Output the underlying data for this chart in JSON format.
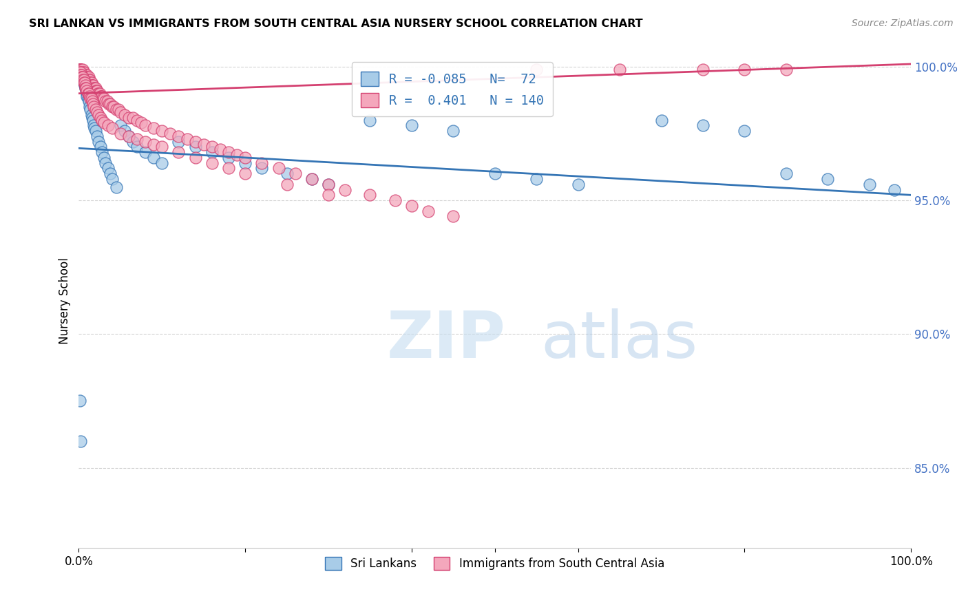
{
  "title": "SRI LANKAN VS IMMIGRANTS FROM SOUTH CENTRAL ASIA NURSERY SCHOOL CORRELATION CHART",
  "source": "Source: ZipAtlas.com",
  "ylabel": "Nursery School",
  "legend_label1": "Sri Lankans",
  "legend_label2": "Immigrants from South Central Asia",
  "R1": -0.085,
  "N1": 72,
  "R2": 0.401,
  "N2": 140,
  "color1": "#a8cce8",
  "color2": "#f4a7bc",
  "line_color1": "#3575b5",
  "line_color2": "#d44070",
  "watermark_zip": "ZIP",
  "watermark_atlas": "atlas",
  "xlim": [
    0.0,
    1.0
  ],
  "ylim": [
    0.82,
    1.005
  ],
  "yticks": [
    0.85,
    0.9,
    0.95,
    1.0
  ],
  "ytick_labels": [
    "85.0%",
    "90.0%",
    "95.0%",
    "100.0%"
  ],
  "sri_lankan_x": [
    0.001,
    0.001,
    0.002,
    0.002,
    0.003,
    0.003,
    0.003,
    0.004,
    0.004,
    0.005,
    0.005,
    0.006,
    0.006,
    0.007,
    0.007,
    0.008,
    0.008,
    0.009,
    0.01,
    0.01,
    0.011,
    0.012,
    0.013,
    0.014,
    0.015,
    0.016,
    0.017,
    0.018,
    0.019,
    0.02,
    0.022,
    0.024,
    0.026,
    0.028,
    0.03,
    0.032,
    0.035,
    0.038,
    0.04,
    0.045,
    0.05,
    0.055,
    0.06,
    0.065,
    0.07,
    0.08,
    0.09,
    0.1,
    0.12,
    0.14,
    0.16,
    0.18,
    0.2,
    0.22,
    0.25,
    0.28,
    0.3,
    0.35,
    0.4,
    0.45,
    0.5,
    0.55,
    0.6,
    0.7,
    0.75,
    0.8,
    0.85,
    0.9,
    0.95,
    0.98,
    0.001,
    0.002
  ],
  "sri_lankan_y": [
    0.998,
    0.999,
    0.998,
    0.997,
    0.997,
    0.996,
    0.995,
    0.996,
    0.995,
    0.997,
    0.996,
    0.995,
    0.994,
    0.994,
    0.993,
    0.993,
    0.992,
    0.991,
    0.99,
    0.989,
    0.988,
    0.987,
    0.985,
    0.984,
    0.982,
    0.981,
    0.98,
    0.978,
    0.977,
    0.976,
    0.974,
    0.972,
    0.97,
    0.968,
    0.966,
    0.964,
    0.962,
    0.96,
    0.958,
    0.955,
    0.978,
    0.976,
    0.974,
    0.972,
    0.97,
    0.968,
    0.966,
    0.964,
    0.972,
    0.97,
    0.968,
    0.966,
    0.964,
    0.962,
    0.96,
    0.958,
    0.956,
    0.98,
    0.978,
    0.976,
    0.96,
    0.958,
    0.956,
    0.98,
    0.978,
    0.976,
    0.96,
    0.958,
    0.956,
    0.954,
    0.875,
    0.86
  ],
  "immigrant_x": [
    0.001,
    0.001,
    0.001,
    0.001,
    0.001,
    0.002,
    0.002,
    0.002,
    0.002,
    0.002,
    0.003,
    0.003,
    0.003,
    0.003,
    0.004,
    0.004,
    0.004,
    0.005,
    0.005,
    0.005,
    0.006,
    0.006,
    0.006,
    0.007,
    0.007,
    0.007,
    0.008,
    0.008,
    0.009,
    0.009,
    0.01,
    0.01,
    0.01,
    0.011,
    0.012,
    0.012,
    0.013,
    0.013,
    0.014,
    0.015,
    0.015,
    0.016,
    0.017,
    0.018,
    0.019,
    0.02,
    0.02,
    0.021,
    0.022,
    0.023,
    0.024,
    0.025,
    0.026,
    0.027,
    0.028,
    0.029,
    0.03,
    0.032,
    0.034,
    0.036,
    0.038,
    0.04,
    0.042,
    0.045,
    0.048,
    0.05,
    0.055,
    0.06,
    0.065,
    0.07,
    0.075,
    0.08,
    0.09,
    0.1,
    0.11,
    0.12,
    0.13,
    0.14,
    0.15,
    0.16,
    0.17,
    0.18,
    0.19,
    0.2,
    0.22,
    0.24,
    0.26,
    0.28,
    0.3,
    0.32,
    0.35,
    0.38,
    0.4,
    0.42,
    0.45,
    0.55,
    0.65,
    0.75,
    0.8,
    0.85,
    0.001,
    0.001,
    0.002,
    0.002,
    0.003,
    0.003,
    0.004,
    0.005,
    0.005,
    0.006,
    0.006,
    0.007,
    0.008,
    0.008,
    0.009,
    0.01,
    0.011,
    0.012,
    0.013,
    0.014,
    0.015,
    0.016,
    0.017,
    0.018,
    0.02,
    0.022,
    0.024,
    0.026,
    0.028,
    0.03,
    0.035,
    0.04,
    0.05,
    0.06,
    0.07,
    0.08,
    0.09,
    0.1,
    0.12,
    0.14,
    0.16,
    0.18,
    0.2,
    0.25,
    0.3
  ],
  "immigrant_y": [
    0.999,
    0.999,
    0.999,
    0.998,
    0.998,
    0.999,
    0.999,
    0.998,
    0.998,
    0.997,
    0.999,
    0.998,
    0.997,
    0.996,
    0.998,
    0.997,
    0.996,
    0.999,
    0.998,
    0.997,
    0.998,
    0.997,
    0.996,
    0.997,
    0.996,
    0.995,
    0.997,
    0.996,
    0.996,
    0.995,
    0.997,
    0.996,
    0.995,
    0.995,
    0.996,
    0.995,
    0.995,
    0.994,
    0.994,
    0.994,
    0.993,
    0.993,
    0.993,
    0.992,
    0.992,
    0.992,
    0.991,
    0.991,
    0.991,
    0.99,
    0.99,
    0.99,
    0.989,
    0.989,
    0.989,
    0.988,
    0.988,
    0.987,
    0.987,
    0.986,
    0.986,
    0.985,
    0.985,
    0.984,
    0.984,
    0.983,
    0.982,
    0.981,
    0.981,
    0.98,
    0.979,
    0.978,
    0.977,
    0.976,
    0.975,
    0.974,
    0.973,
    0.972,
    0.971,
    0.97,
    0.969,
    0.968,
    0.967,
    0.966,
    0.964,
    0.962,
    0.96,
    0.958,
    0.956,
    0.954,
    0.952,
    0.95,
    0.948,
    0.946,
    0.944,
    0.999,
    0.999,
    0.999,
    0.999,
    0.999,
    0.998,
    0.997,
    0.998,
    0.997,
    0.997,
    0.996,
    0.996,
    0.996,
    0.995,
    0.995,
    0.994,
    0.994,
    0.993,
    0.992,
    0.992,
    0.991,
    0.99,
    0.99,
    0.989,
    0.988,
    0.988,
    0.987,
    0.986,
    0.985,
    0.984,
    0.983,
    0.982,
    0.981,
    0.98,
    0.979,
    0.978,
    0.977,
    0.975,
    0.974,
    0.973,
    0.972,
    0.971,
    0.97,
    0.968,
    0.966,
    0.964,
    0.962,
    0.96,
    0.956,
    0.952
  ]
}
